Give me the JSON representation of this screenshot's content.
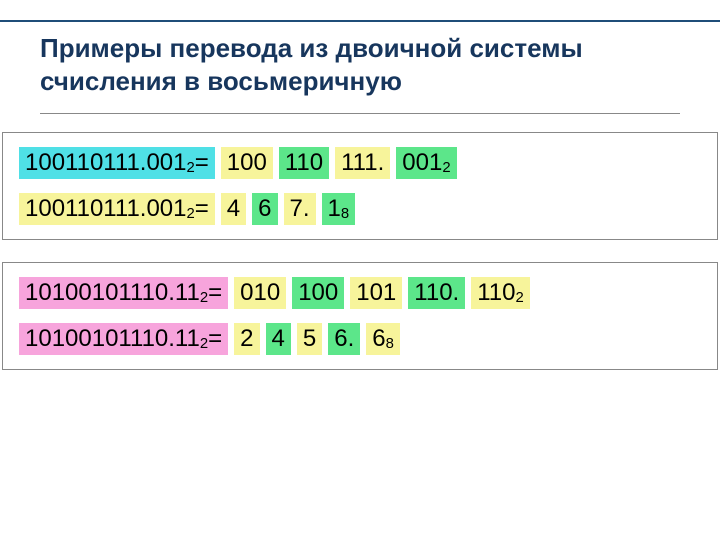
{
  "title": "Примеры перевода из двоичной системы счисления в восьмеричную",
  "colors": {
    "cyan": "#4fe0e6",
    "yellow": "#f7f49b",
    "green": "#5ce68a",
    "pink": "#f7a4dc",
    "title": "#17365d",
    "rule": "#1f4e79",
    "border": "#888888"
  },
  "font": {
    "title_size": 26,
    "row_size": 24,
    "family": "Arial"
  },
  "panels": [
    {
      "rows": [
        {
          "lhs": {
            "text": "100110111.001",
            "sub": "2",
            "eq": true,
            "bg": "cyan"
          },
          "rhs": [
            {
              "text": "100",
              "bg": "yellow"
            },
            {
              "text": "110",
              "bg": "green"
            },
            {
              "text": "111.",
              "bg": "yellow"
            },
            {
              "text": "001",
              "sub": "2",
              "bg": "green"
            }
          ]
        },
        {
          "lhs": {
            "text": "100110111.001",
            "sub": "2",
            "eq": true,
            "bg": "yellow"
          },
          "rhs": [
            {
              "text": "4",
              "bg": "yellow"
            },
            {
              "text": "6",
              "bg": "green"
            },
            {
              "text": "7.",
              "bg": "yellow"
            },
            {
              "text": "1",
              "sub": "8",
              "bg": "green"
            }
          ]
        }
      ]
    },
    {
      "rows": [
        {
          "lhs": {
            "text": "10100101110.11",
            "sub": "2",
            "eq": true,
            "bg": "pink"
          },
          "rhs": [
            {
              "text": "010",
              "bg": "yellow"
            },
            {
              "text": "100",
              "bg": "green"
            },
            {
              "text": "101",
              "bg": "yellow"
            },
            {
              "text": "110.",
              "bg": "green"
            },
            {
              "text": "110",
              "sub": "2",
              "bg": "yellow"
            }
          ]
        },
        {
          "lhs": {
            "text": "10100101110.11",
            "sub": "2",
            "eq": true,
            "bg": "pink"
          },
          "rhs": [
            {
              "text": "2",
              "bg": "yellow"
            },
            {
              "text": "4",
              "bg": "green"
            },
            {
              "text": "5",
              "bg": "yellow"
            },
            {
              "text": "6.",
              "bg": "green"
            },
            {
              "text": "6",
              "sub": "8",
              "bg": "yellow"
            }
          ]
        }
      ]
    }
  ]
}
